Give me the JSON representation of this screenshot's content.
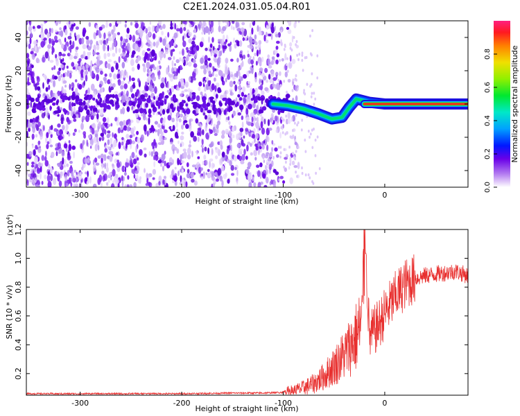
{
  "figure": {
    "title": "C2E1.2024.031.05.04.R01"
  },
  "chart_data": [
    {
      "type": "heatmap",
      "xlabel": "Height of straight line (km)",
      "ylabel": "Frequency (Hz)",
      "xlim": [
        -353,
        82
      ],
      "ylim": [
        -50,
        50
      ],
      "xticks": [
        -300,
        -200,
        -100,
        0
      ],
      "yticks": [
        -40,
        -20,
        0,
        20,
        40
      ],
      "colorbar": {
        "label": "Normalized spectral amplitude",
        "range": [
          0,
          1
        ],
        "ticks": [
          "0.0",
          "0.2",
          "0.4",
          "0.6",
          "0.8"
        ]
      },
      "features": {
        "noise_region_x": [
          -353,
          -105
        ],
        "signal_track": [
          {
            "x": -110,
            "y": 0
          },
          {
            "x": -95,
            "y": -1
          },
          {
            "x": -80,
            "y": -3
          },
          {
            "x": -65,
            "y": -6
          },
          {
            "x": -52,
            "y": -9
          },
          {
            "x": -42,
            "y": -8
          },
          {
            "x": -35,
            "y": -2
          },
          {
            "x": -28,
            "y": 3
          },
          {
            "x": -15,
            "y": 1
          },
          {
            "x": 0,
            "y": 0
          },
          {
            "x": 82,
            "y": 0
          }
        ],
        "strong_line_x": [
          -20,
          82
        ],
        "strong_line_y": 0
      }
    },
    {
      "type": "line",
      "xlabel": "Height of straight line (km)",
      "ylabel": "SNR (10 * v/v)",
      "scale_label": "(x10",
      "scale_exp": "4",
      "scale_close": ")",
      "xlim": [
        -353,
        82
      ],
      "ylim": [
        0.05,
        1.2
      ],
      "xticks": [
        -300,
        -200,
        -100,
        0
      ],
      "yticks": [
        "0.2",
        "0.4",
        "0.6",
        "0.8",
        "1.0",
        "1.2"
      ],
      "color": "#e8302f",
      "series": [
        {
          "x": [
            -353,
            -300,
            -250,
            -200,
            -150,
            -120,
            -100,
            -90,
            -80,
            -70,
            -60,
            -50,
            -40,
            -30,
            -22,
            -20,
            -15,
            -10,
            -5,
            0,
            10,
            20,
            30,
            40,
            50,
            60,
            70,
            82
          ],
          "values": [
            0.06,
            0.06,
            0.06,
            0.06,
            0.065,
            0.065,
            0.07,
            0.08,
            0.1,
            0.13,
            0.18,
            0.25,
            0.33,
            0.43,
            0.55,
            1.2,
            0.45,
            0.5,
            0.55,
            0.62,
            0.73,
            0.82,
            0.86,
            0.88,
            0.89,
            0.9,
            0.91,
            0.88
          ]
        }
      ]
    }
  ]
}
